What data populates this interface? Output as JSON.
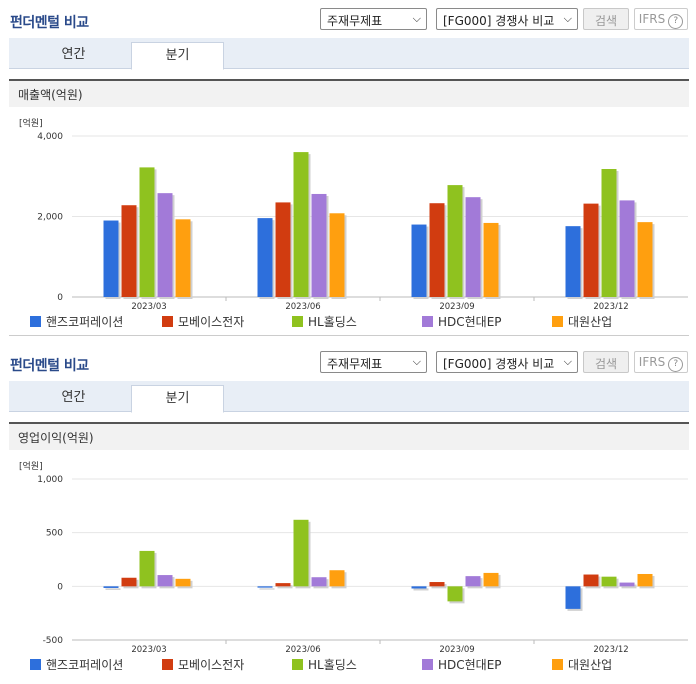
{
  "colors": {
    "hanse": "#2d6fdc",
    "mobase": "#d13c10",
    "hl": "#8fc21f",
    "hdc": "#a27ad8",
    "daewon": "#ff9f0f"
  },
  "panels": [
    {
      "title": "펀더멘털 비교",
      "select1": "주재무제표",
      "select2": "[FG000] 경쟁사 비교",
      "search_btn": "검색",
      "ifrs": "IFRS",
      "help": "?",
      "tabs": [
        "연간",
        "분기"
      ],
      "active_tab": 1,
      "subhead": "매출액(억원)",
      "unit": "[억원]",
      "legend": [
        "핸즈코퍼레이션",
        "모베이스전자",
        "HL홀딩스",
        "HDC현대EP",
        "대원산업"
      ],
      "chart_data": {
        "type": "bar",
        "title": "매출액(억원)",
        "ylabel": "[억원]",
        "ylim": [
          0,
          4000
        ],
        "yticks": [
          "0",
          "2,000",
          "4,000"
        ],
        "ytick_values": [
          0,
          2000,
          4000
        ],
        "categories": [
          "2023/03",
          "2023/06",
          "2023/09",
          "2023/12"
        ],
        "series": [
          {
            "name": "핸즈코퍼레이션",
            "values": [
              1900,
              1960,
              1800,
              1760
            ]
          },
          {
            "name": "모베이스전자",
            "values": [
              2280,
              2350,
              2330,
              2320
            ]
          },
          {
            "name": "HL홀딩스",
            "values": [
              3220,
              3600,
              2780,
              3180
            ]
          },
          {
            "name": "HDC현대EP",
            "values": [
              2580,
              2560,
              2480,
              2400
            ]
          },
          {
            "name": "대원산업",
            "values": [
              1930,
              2080,
              1840,
              1860
            ]
          }
        ],
        "grid": true,
        "legend_position": "bottom"
      }
    },
    {
      "title": "펀더멘털 비교",
      "select1": "주재무제표",
      "select2": "[FG000] 경쟁사 비교",
      "search_btn": "검색",
      "ifrs": "IFRS",
      "help": "?",
      "tabs": [
        "연간",
        "분기"
      ],
      "active_tab": 1,
      "subhead": "영업이익(억원)",
      "unit": "[억원]",
      "legend": [
        "핸즈코퍼레이션",
        "모베이스전자",
        "HL홀딩스",
        "HDC현대EP",
        "대원산업"
      ],
      "chart_data": {
        "type": "bar",
        "title": "영업이익(억원)",
        "ylabel": "[억원]",
        "ylim": [
          -500,
          1000
        ],
        "yticks": [
          "-500",
          "0",
          "500",
          "1,000"
        ],
        "ytick_values": [
          -500,
          0,
          500,
          1000
        ],
        "categories": [
          "2023/03",
          "2023/06",
          "2023/09",
          "2023/12"
        ],
        "series": [
          {
            "name": "핸즈코퍼레이션",
            "values": [
              -15,
              -12,
              -20,
              -210
            ]
          },
          {
            "name": "모베이스전자",
            "values": [
              80,
              30,
              40,
              110
            ]
          },
          {
            "name": "HL홀딩스",
            "values": [
              330,
              620,
              -140,
              90
            ]
          },
          {
            "name": "HDC현대EP",
            "values": [
              105,
              85,
              95,
              35
            ]
          },
          {
            "name": "대원산업",
            "values": [
              70,
              150,
              125,
              115
            ]
          }
        ],
        "grid": true,
        "legend_position": "bottom"
      }
    }
  ]
}
